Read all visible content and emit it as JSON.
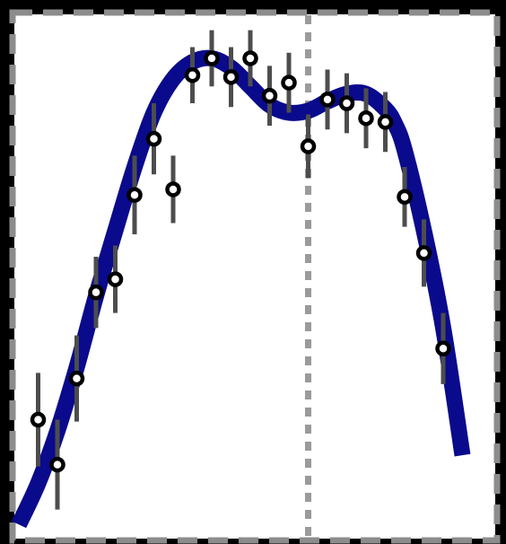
{
  "colors": {
    "page_background": "#000000",
    "plot_background": "#ffffff",
    "frame_border": "#8c8c8c",
    "curve": "#0a0a8c",
    "marker_face": "#ffffff",
    "marker_edge": "#000000",
    "error_bar": "#4d4d4d",
    "reference_line": "#9a9a9a"
  },
  "chart_data": {
    "type": "scatter",
    "title": "",
    "xlabel": "",
    "ylabel": "",
    "xlim": [
      0,
      24
    ],
    "ylim": [
      0,
      28
    ],
    "grid": false,
    "legend": "none",
    "frame_style": "dashed",
    "reference_line": {
      "orientation": "vertical",
      "x": 15,
      "style": "dotted"
    },
    "series": [
      {
        "kind": "points-with-error-bars",
        "x": [
          1,
          2,
          3,
          4,
          5,
          6,
          7,
          8,
          9,
          10,
          11,
          12,
          13,
          14,
          15,
          16,
          17,
          18,
          19,
          20,
          21,
          22
        ],
        "y": [
          6.4,
          4.0,
          8.6,
          13.2,
          13.9,
          18.4,
          21.4,
          18.7,
          24.8,
          25.7,
          24.7,
          25.7,
          23.7,
          24.4,
          21.0,
          23.5,
          23.3,
          22.5,
          22.3,
          18.3,
          15.3,
          10.2
        ],
        "yerr": [
          2.5,
          2.4,
          2.3,
          1.9,
          1.8,
          2.1,
          1.9,
          1.8,
          1.5,
          1.5,
          1.6,
          1.5,
          1.6,
          1.6,
          1.7,
          1.6,
          1.6,
          1.6,
          1.6,
          1.6,
          1.8,
          1.9
        ]
      },
      {
        "kind": "curve",
        "x": [
          0.0,
          1.0,
          2.0,
          3.0,
          4.0,
          5.0,
          6.0,
          7.0,
          8.0,
          9.0,
          10.0,
          11.0,
          12.0,
          13.0,
          14.0,
          15.0,
          16.0,
          17.0,
          18.0,
          19.0,
          19.5,
          20.0,
          21.0,
          22.0,
          23.0
        ],
        "y": [
          0.8,
          3.0,
          5.8,
          9.2,
          13.0,
          16.5,
          19.9,
          22.8,
          24.6,
          25.5,
          25.7,
          25.2,
          24.2,
          23.2,
          22.8,
          22.9,
          23.4,
          23.8,
          23.8,
          23.0,
          22.2,
          20.8,
          16.5,
          11.3,
          4.5
        ]
      }
    ]
  }
}
